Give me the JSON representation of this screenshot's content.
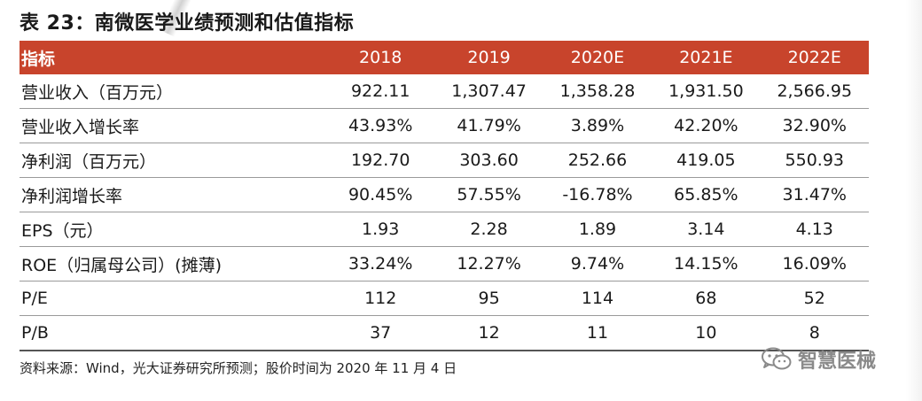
{
  "title": "表 23：南微医学业绩预测和估值指标",
  "header": {
    "label": "指标",
    "years": [
      "2018",
      "2019",
      "2020E",
      "2021E",
      "2022E"
    ]
  },
  "rows": [
    {
      "label": "营业收入（百万元）",
      "values": [
        "922.11",
        "1,307.47",
        "1,358.28",
        "1,931.50",
        "2,566.95"
      ]
    },
    {
      "label": "营业收入增长率",
      "values": [
        "43.93%",
        "41.79%",
        "3.89%",
        "42.20%",
        "32.90%"
      ]
    },
    {
      "label": "净利润（百万元）",
      "values": [
        "192.70",
        "303.60",
        "252.66",
        "419.05",
        "550.93"
      ]
    },
    {
      "label": "净利润增长率",
      "values": [
        "90.45%",
        "57.55%",
        "-16.78%",
        "65.85%",
        "31.47%"
      ]
    },
    {
      "label": "EPS（元）",
      "values": [
        "1.93",
        "2.28",
        "1.89",
        "3.14",
        "4.13"
      ]
    },
    {
      "label": "ROE（归属母公司）(摊薄)",
      "values": [
        "33.24%",
        "12.27%",
        "9.74%",
        "14.15%",
        "16.09%"
      ]
    },
    {
      "label": "P/E",
      "values": [
        "112",
        "95",
        "114",
        "68",
        "52"
      ]
    },
    {
      "label": "P/B",
      "values": [
        "37",
        "12",
        "11",
        "10",
        "8"
      ]
    }
  ],
  "source": "资料来源：Wind，光大证券研究所预测；股价时间为 2020 年 11 月 4 日",
  "watermark": {
    "text": "智慧医械",
    "icon": "wechat-icon"
  },
  "colors": {
    "header_bg": "#c8442c",
    "header_text": "#ffffff"
  }
}
